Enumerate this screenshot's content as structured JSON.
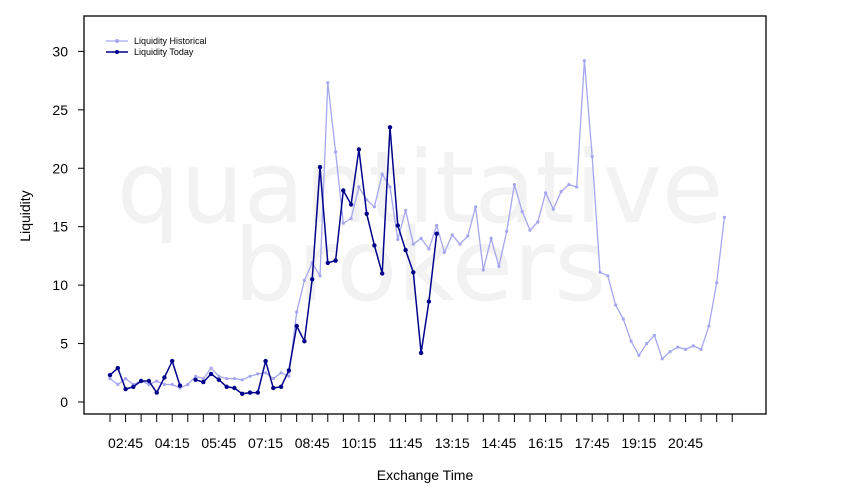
{
  "watermark": {
    "line1": "quantitative",
    "line2": "brokers"
  },
  "chart_data": {
    "type": "line",
    "xlabel": "Exchange Time",
    "ylabel": "Liquidity",
    "ylim": [
      -1,
      32
    ],
    "yticks": [
      0,
      5,
      10,
      15,
      20,
      25,
      30
    ],
    "x_range": [
      "02:15",
      "22:30"
    ],
    "x_step_minutes": 15,
    "xticks": [
      "02:45",
      "04:15",
      "05:45",
      "07:15",
      "08:45",
      "10:15",
      "11:45",
      "13:15",
      "14:45",
      "16:15",
      "17:45",
      "19:15",
      "20:45"
    ],
    "legend_position": "top-left",
    "grid": false,
    "series": [
      {
        "name": "Liquidity Historical",
        "color": "#a6a6f0",
        "start": "02:15",
        "values": [
          2.0,
          1.5,
          2.0,
          1.5,
          1.8,
          1.5,
          1.8,
          1.5,
          1.5,
          1.2,
          1.5,
          2.2,
          2.0,
          2.9,
          2.2,
          2.0,
          2.0,
          1.9,
          2.2,
          2.4,
          2.5,
          2.0,
          2.5,
          2.2,
          7.7,
          10.4,
          11.9,
          10.8,
          27.3,
          21.4,
          15.3,
          15.7,
          18.4,
          17.3,
          16.7,
          19.5,
          18.4,
          13.9,
          16.4,
          13.5,
          14.0,
          13.1,
          15.1,
          12.8,
          14.3,
          13.5,
          14.2,
          16.7,
          11.3,
          14.0,
          11.6,
          14.6,
          18.6,
          16.3,
          14.7,
          15.4,
          17.9,
          16.5,
          18.0,
          18.6,
          18.4,
          29.2,
          21.0,
          11.1,
          10.8,
          8.3,
          7.1,
          5.2,
          4.0,
          5.0,
          5.7,
          3.7,
          4.3,
          4.7,
          4.5,
          4.8,
          4.5,
          6.5,
          10.2,
          15.8
        ]
      },
      {
        "name": "Liquidity Today",
        "color": "#00008b",
        "start": "02:15",
        "values": [
          2.3,
          2.9,
          1.1,
          1.3,
          1.8,
          1.8,
          0.8,
          2.1,
          3.5,
          1.4,
          null,
          1.9,
          1.7,
          2.4,
          1.9,
          1.3,
          1.2,
          0.7,
          0.8,
          0.8,
          3.5,
          1.2,
          1.3,
          2.7,
          6.5,
          5.2,
          10.5,
          20.1,
          11.9,
          12.1,
          18.1,
          16.9,
          21.6,
          16.1,
          13.4,
          11.0,
          23.5,
          15.1,
          13.0,
          11.1,
          4.2,
          8.6,
          14.4
        ]
      }
    ]
  }
}
